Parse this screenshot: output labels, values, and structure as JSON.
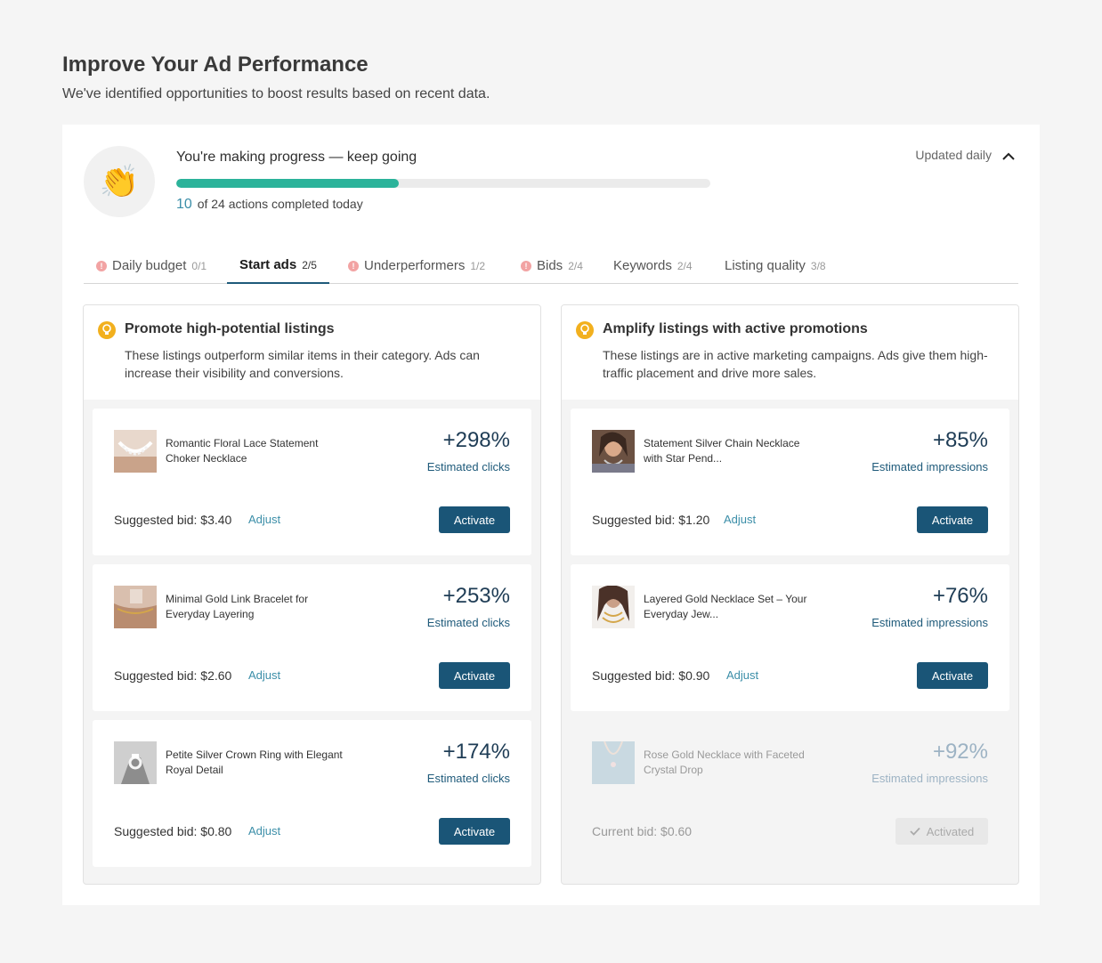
{
  "header": {
    "title": "Improve Your Ad Performance",
    "subtitle": "We've identified opportunities to boost results based on recent data."
  },
  "progress": {
    "emoji": "👏",
    "title": "You're making progress — keep going",
    "completed": "10",
    "count_suffix": "of 24 actions completed today",
    "fraction": 0.4167,
    "updated_label": "Updated daily"
  },
  "tabs": [
    {
      "label": "Daily budget",
      "count": "0/1",
      "warning": true
    },
    {
      "label": "Start ads",
      "count": "2/5",
      "warning": false,
      "active": true
    },
    {
      "label": "Underperformers",
      "count": "1/2",
      "warning": true
    },
    {
      "label": "Bids",
      "count": "2/4",
      "warning": true
    },
    {
      "label": "Keywords",
      "count": "2/4",
      "warning": false
    },
    {
      "label": "Listing quality",
      "count": "3/8",
      "warning": false
    }
  ],
  "columns": {
    "left": {
      "title": "Promote high-potential listings",
      "description": "These listings outperform similar items in their category. Ads can increase their visibility and conversions.",
      "cards": [
        {
          "name": "Romantic Floral Lace Statement Choker Necklace",
          "pct": "+298%",
          "metric": "Estimated clicks",
          "bid": "Suggested bid: $3.40",
          "adjust": "Adjust",
          "action": "Activate"
        },
        {
          "name": "Minimal Gold Link Bracelet for Everyday Layering",
          "pct": "+253%",
          "metric": "Estimated clicks",
          "bid": "Suggested bid: $2.60",
          "adjust": "Adjust",
          "action": "Activate"
        },
        {
          "name": "Petite Silver Crown Ring with Elegant Royal Detail",
          "pct": "+174%",
          "metric": "Estimated clicks",
          "bid": "Suggested bid: $0.80",
          "adjust": "Adjust",
          "action": "Activate"
        }
      ]
    },
    "right": {
      "title": "Amplify listings with active promotions",
      "description": "These listings are in active marketing campaigns. Ads give them high-traffic placement and drive more sales.",
      "cards": [
        {
          "name": "Statement Silver Chain Necklace with Star Pend...",
          "pct": "+85%",
          "metric": "Estimated impressions",
          "bid": "Suggested bid: $1.20",
          "adjust": "Adjust",
          "action": "Activate"
        },
        {
          "name": "Layered Gold Necklace Set – Your Everyday Jew...",
          "pct": "+76%",
          "metric": "Estimated impressions",
          "bid": "Suggested bid: $0.90",
          "adjust": "Adjust",
          "action": "Activate"
        },
        {
          "name": "Rose Gold Necklace with Faceted Crystal Drop",
          "pct": "+92%",
          "metric": "Estimated impressions",
          "bid": "Current bid: $0.60",
          "action": "Activated"
        }
      ]
    }
  },
  "colors": {
    "accent": "#1a5577",
    "progress": "#2bb39a",
    "link": "#3b8ea8",
    "bulb": "#f2b01e",
    "warning": "#f2a3a3"
  },
  "icons": {
    "collapse": "chevron-up-icon",
    "tip": "lightbulb-icon",
    "warning": "alert-icon",
    "activated": "check-icon"
  }
}
